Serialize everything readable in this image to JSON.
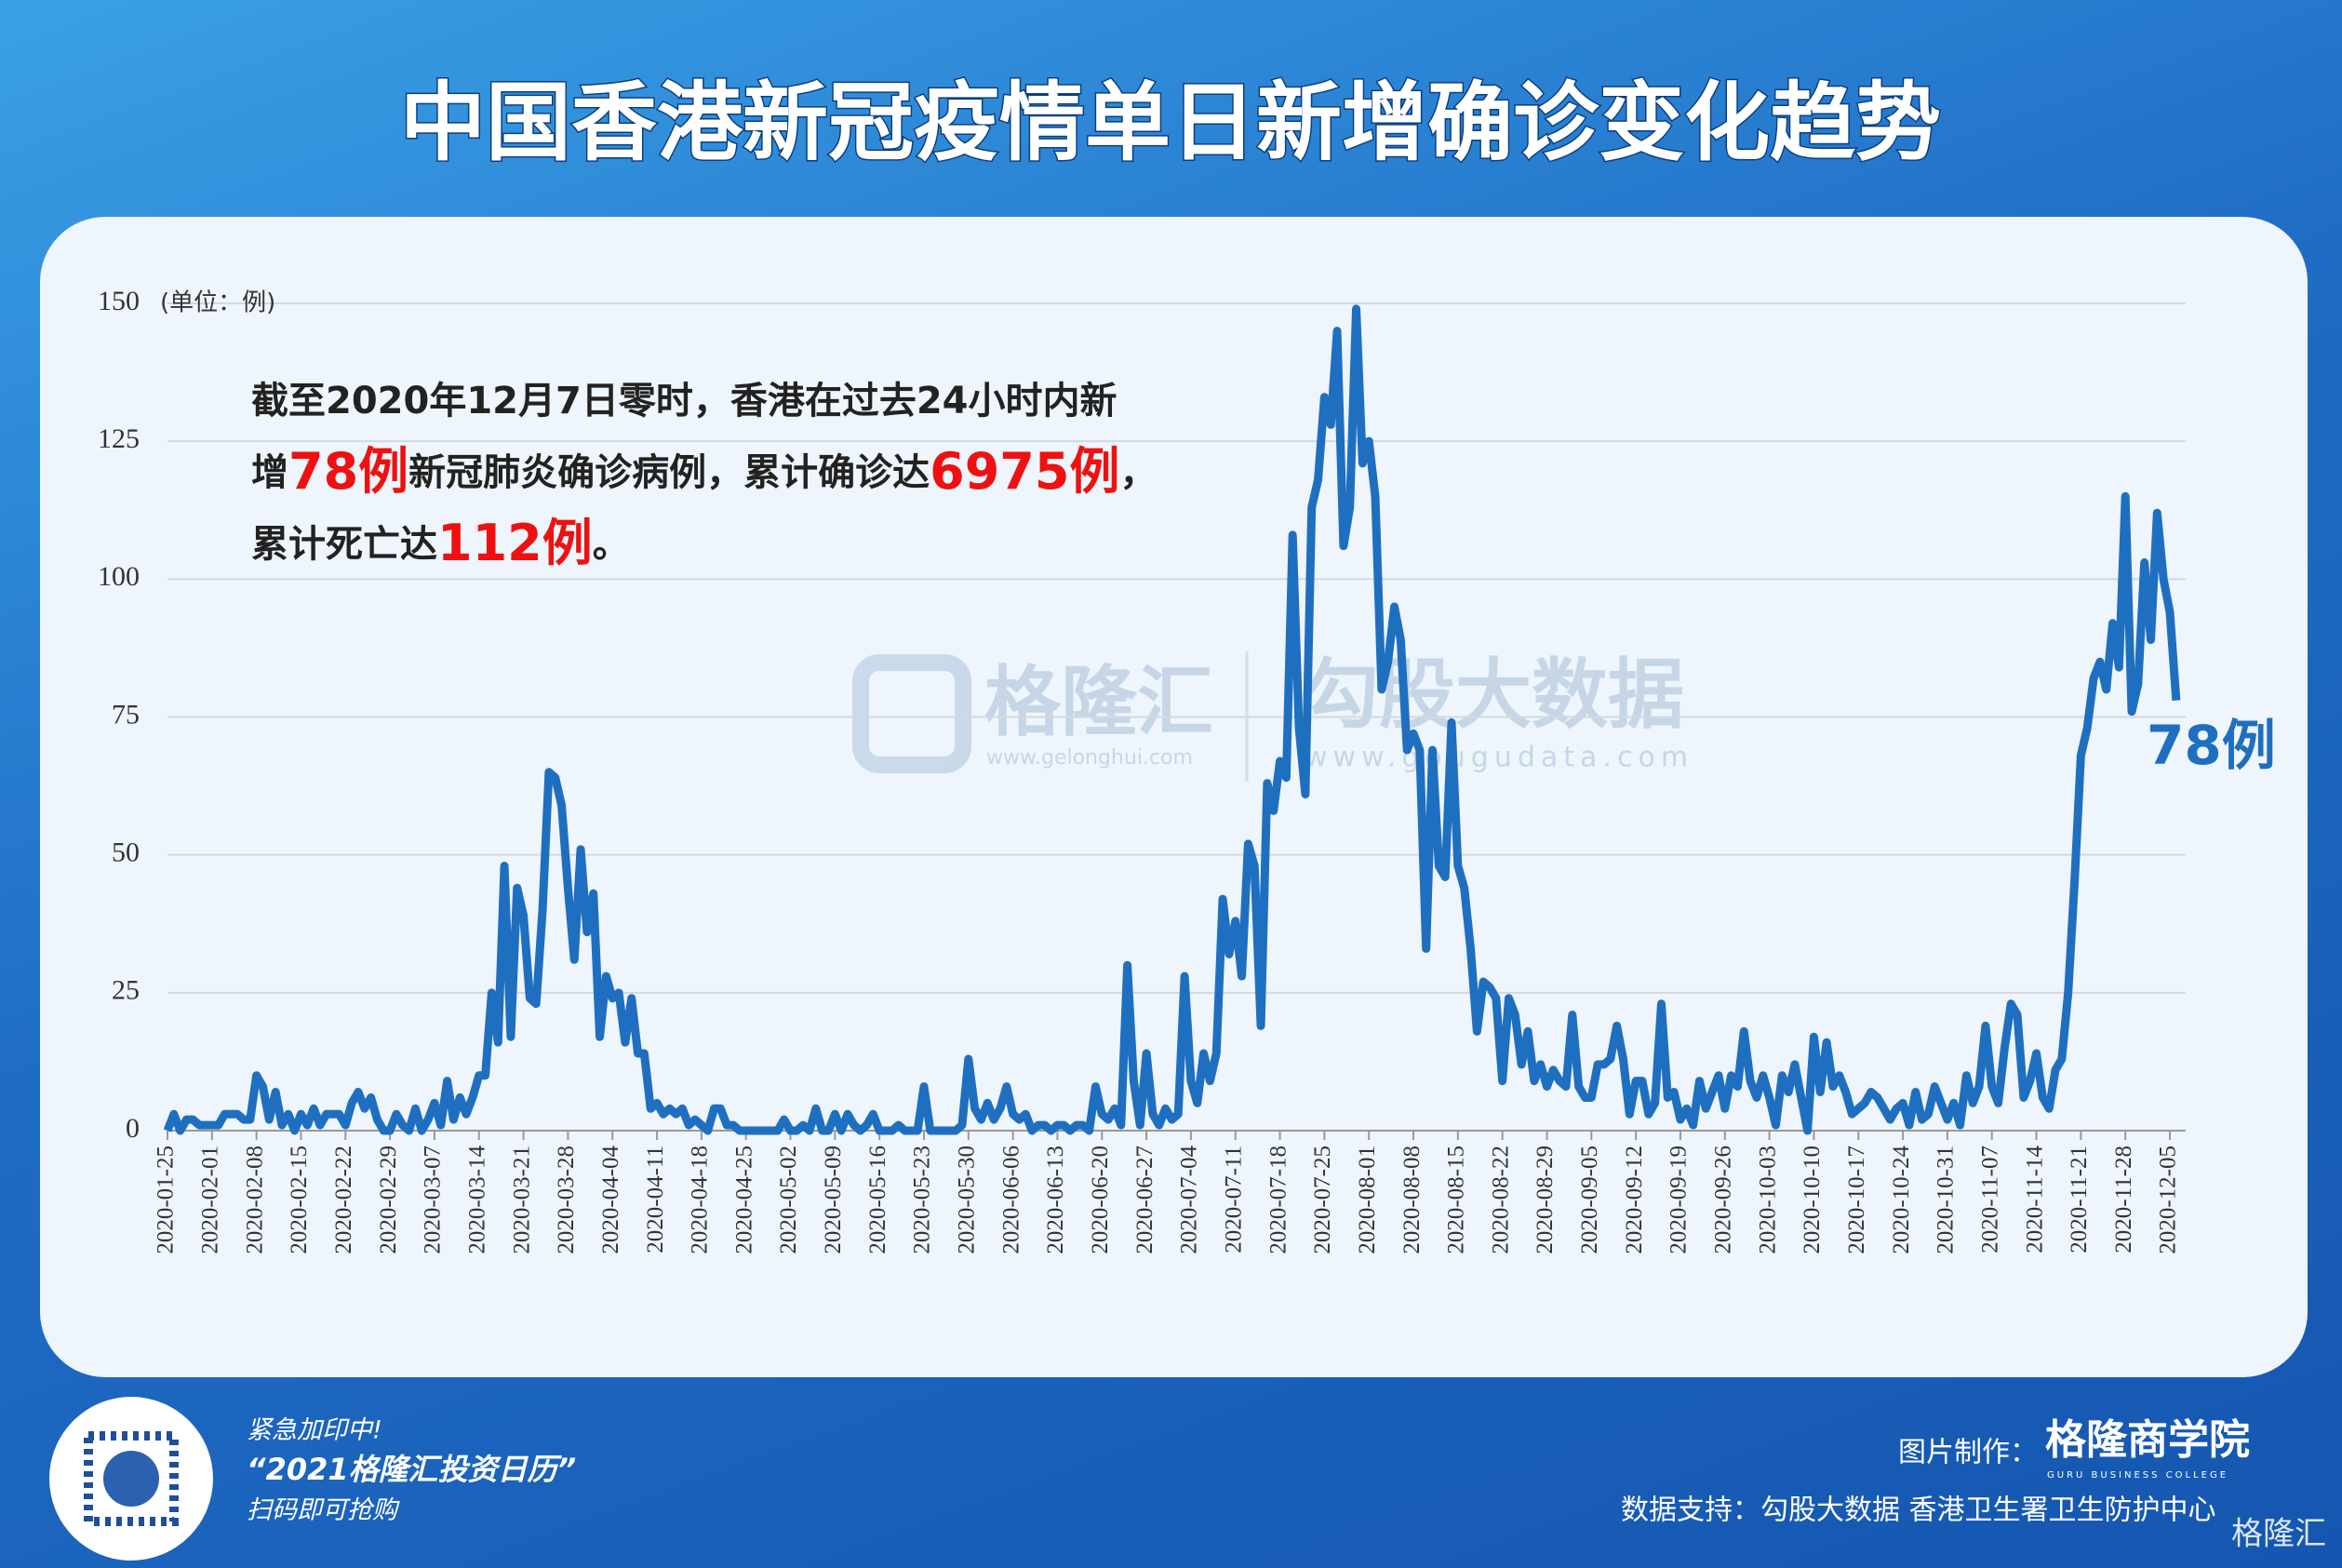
{
  "header": {
    "title": "中国香港新冠疫情单日新增确诊变化趋势"
  },
  "chart_data": {
    "type": "line",
    "y_unit_label": "(单位：例)",
    "annotation": [
      [
        "截至2020年12月7日零时，香港在过去24小时内新"
      ],
      [
        "增",
        "78例",
        "新冠肺炎确诊病例，累计确诊达",
        "6975例",
        "，"
      ],
      [
        "累计死亡达",
        "112例",
        "。"
      ]
    ],
    "end_label": "78例",
    "color": "#1f6fc0",
    "grid": true,
    "ylim": [
      0,
      150
    ],
    "yticks": [
      0,
      25,
      50,
      75,
      100,
      125,
      150
    ],
    "categories": [
      "2020-01-25",
      null,
      null,
      null,
      null,
      null,
      null,
      "2020-02-01",
      null,
      null,
      null,
      null,
      null,
      null,
      "2020-02-08",
      null,
      null,
      null,
      null,
      null,
      null,
      "2020-02-15",
      null,
      null,
      null,
      null,
      null,
      null,
      "2020-02-22",
      null,
      null,
      null,
      null,
      null,
      null,
      "2020-02-29",
      null,
      null,
      null,
      null,
      null,
      null,
      "2020-03-07",
      null,
      null,
      null,
      null,
      null,
      null,
      "2020-03-14",
      null,
      null,
      null,
      null,
      null,
      null,
      "2020-03-21",
      null,
      null,
      null,
      null,
      null,
      null,
      "2020-03-28",
      null,
      null,
      null,
      null,
      null,
      null,
      "2020-04-04",
      null,
      null,
      null,
      null,
      null,
      null,
      "2020-04-11",
      null,
      null,
      null,
      null,
      null,
      null,
      "2020-04-18",
      null,
      null,
      null,
      null,
      null,
      null,
      "2020-04-25",
      null,
      null,
      null,
      null,
      null,
      null,
      "2020-05-02",
      null,
      null,
      null,
      null,
      null,
      null,
      "2020-05-09",
      null,
      null,
      null,
      null,
      null,
      null,
      "2020-05-16",
      null,
      null,
      null,
      null,
      null,
      null,
      "2020-05-23",
      null,
      null,
      null,
      null,
      null,
      null,
      "2020-05-30",
      null,
      null,
      null,
      null,
      null,
      null,
      "2020-06-06",
      null,
      null,
      null,
      null,
      null,
      null,
      "2020-06-13",
      null,
      null,
      null,
      null,
      null,
      null,
      "2020-06-20",
      null,
      null,
      null,
      null,
      null,
      null,
      "2020-06-27",
      null,
      null,
      null,
      null,
      null,
      null,
      "2020-07-04",
      null,
      null,
      null,
      null,
      null,
      null,
      "2020-07-11",
      null,
      null,
      null,
      null,
      null,
      null,
      "2020-07-18",
      null,
      null,
      null,
      null,
      null,
      null,
      "2020-07-25",
      null,
      null,
      null,
      null,
      null,
      null,
      "2020-08-01",
      null,
      null,
      null,
      null,
      null,
      null,
      "2020-08-08",
      null,
      null,
      null,
      null,
      null,
      null,
      "2020-08-15",
      null,
      null,
      null,
      null,
      null,
      null,
      "2020-08-22",
      null,
      null,
      null,
      null,
      null,
      null,
      "2020-08-29",
      null,
      null,
      null,
      null,
      null,
      null,
      "2020-09-05",
      null,
      null,
      null,
      null,
      null,
      null,
      "2020-09-12",
      null,
      null,
      null,
      null,
      null,
      null,
      "2020-09-19",
      null,
      null,
      null,
      null,
      null,
      null,
      "2020-09-26",
      null,
      null,
      null,
      null,
      null,
      null,
      "2020-10-03",
      null,
      null,
      null,
      null,
      null,
      null,
      "2020-10-10",
      null,
      null,
      null,
      null,
      null,
      null,
      "2020-10-17",
      null,
      null,
      null,
      null,
      null,
      null,
      "2020-10-24",
      null,
      null,
      null,
      null,
      null,
      null,
      "2020-10-31",
      null,
      null,
      null,
      null,
      null,
      null,
      "2020-11-07",
      null,
      null,
      null,
      null,
      null,
      null,
      "2020-11-14",
      null,
      null,
      null,
      null,
      null,
      null,
      "2020-11-21",
      null,
      null,
      null,
      null,
      null,
      null,
      "2020-11-28",
      null,
      null,
      null,
      null,
      null,
      null,
      "2020-12-05",
      null
    ],
    "values": [
      0,
      3,
      0,
      2,
      2,
      1,
      1,
      1,
      1,
      3,
      3,
      3,
      2,
      2,
      10,
      8,
      2,
      7,
      1,
      3,
      0,
      3,
      1,
      4,
      1,
      3,
      3,
      3,
      1,
      5,
      7,
      4,
      6,
      2,
      0,
      0,
      3,
      1,
      0,
      4,
      0,
      2,
      5,
      1,
      9,
      2,
      6,
      3,
      6,
      10,
      10,
      25,
      16,
      48,
      17,
      44,
      39,
      24,
      23,
      40,
      65,
      64,
      59,
      44,
      31,
      51,
      36,
      43,
      17,
      28,
      24,
      25,
      16,
      24,
      14,
      14,
      4,
      5,
      3,
      4,
      3,
      4,
      1,
      2,
      1,
      0,
      4,
      4,
      1,
      1,
      0,
      0,
      0,
      0,
      0,
      0,
      0,
      2,
      0,
      0,
      1,
      0,
      4,
      0,
      0,
      3,
      0,
      3,
      1,
      0,
      1,
      3,
      0,
      0,
      0,
      1,
      0,
      0,
      0,
      8,
      0,
      0,
      0,
      0,
      0,
      1,
      13,
      4,
      2,
      5,
      2,
      4,
      8,
      3,
      2,
      3,
      0,
      1,
      1,
      0,
      1,
      1,
      0,
      1,
      1,
      0,
      8,
      3,
      2,
      4,
      1,
      30,
      9,
      1,
      14,
      3,
      1,
      4,
      2,
      3,
      28,
      9,
      5,
      14,
      9,
      14,
      42,
      32,
      38,
      28,
      52,
      48,
      19,
      63,
      58,
      67,
      64,
      108,
      73,
      61,
      113,
      118,
      133,
      128,
      145,
      106,
      113,
      149,
      121,
      125,
      115,
      80,
      85,
      95,
      89,
      69,
      72,
      69,
      33,
      69,
      48,
      46,
      74,
      48,
      44,
      33,
      18,
      27,
      26,
      24,
      9,
      24,
      21,
      12,
      18,
      9,
      12,
      8,
      11,
      9,
      8,
      21,
      8,
      6,
      6,
      12,
      12,
      13,
      19,
      13,
      3,
      9,
      9,
      3,
      5,
      23,
      6,
      7,
      2,
      4,
      1,
      9,
      4,
      7,
      10,
      4,
      10,
      8,
      18,
      9,
      6,
      10,
      6,
      1,
      10,
      7,
      12,
      6,
      0,
      17,
      7,
      16,
      8,
      10,
      7,
      3,
      4,
      5,
      7,
      6,
      4,
      2,
      4,
      5,
      1,
      7,
      2,
      3,
      8,
      5,
      2,
      5,
      1,
      10,
      5,
      8,
      19,
      8,
      5,
      15,
      23,
      21,
      6,
      9,
      14,
      6,
      4,
      11,
      13,
      25,
      45,
      68,
      73,
      82,
      85,
      80,
      92,
      84,
      115,
      76,
      81,
      103,
      89,
      112,
      100,
      94,
      78
    ]
  },
  "watermark": {
    "brand": "格隆汇",
    "brand_url": "www.gelonghui.com",
    "data_brand": "勾股大数据",
    "data_url": "www.gougudata.com"
  },
  "footer": {
    "promo": [
      "紧急加印中!",
      "“2021格隆汇投资日历”",
      "扫码即可抢购"
    ],
    "made_by_label": "图片制作：",
    "made_by": "格隆商学院",
    "made_by_en": "GURU BUSINESS COLLEGE",
    "source": "数据支持：勾股大数据 香港卫生署卫生防护中心",
    "logo": "格隆汇"
  }
}
